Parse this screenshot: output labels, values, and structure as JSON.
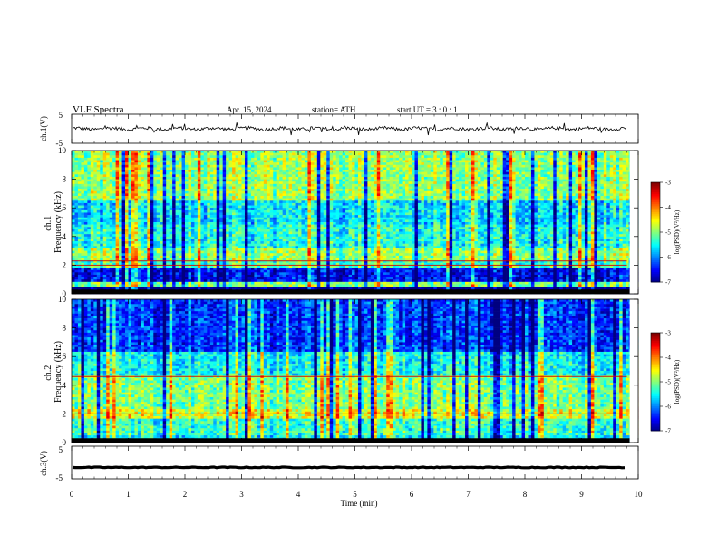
{
  "header": {
    "title": "VLF  Spectra",
    "date": "Apr. 15, 2024",
    "station": "station= ATH",
    "start_ut": "start  UT  =   3  : 0   : 1"
  },
  "chart_data": [
    {
      "type": "line",
      "panel": "ch1-waveform",
      "ylabel": "ch.1(V)",
      "yticks": [
        "5",
        "-5"
      ],
      "ylim": [
        -5,
        5
      ],
      "xlim": [
        0,
        10
      ],
      "series": [
        {
          "mean": 0,
          "noise_amplitude": 0.6,
          "spike_amplitude": 2.5,
          "end": 9.8
        }
      ]
    },
    {
      "type": "heatmap",
      "panel": "ch1-spectrogram",
      "ylabel": "ch.1\nFrequency  (kHz)",
      "yticks": [
        "0",
        "2",
        "4",
        "6",
        "8",
        "10"
      ],
      "ylim": [
        0,
        10
      ],
      "xlim": [
        0,
        10
      ],
      "colorbar": {
        "label": "log(PSD)(V²/Hz)",
        "ticks": [
          "-3",
          "-4",
          "-5",
          "-6",
          "-7"
        ],
        "range": [
          -7,
          -3
        ]
      },
      "bands": [
        {
          "f": [
            0.0,
            0.5
          ],
          "level": -7.0
        },
        {
          "f": [
            0.5,
            0.9
          ],
          "level": -5.0
        },
        {
          "f": [
            0.9,
            1.8
          ],
          "level": -6.5
        },
        {
          "f": [
            1.8,
            2.4
          ],
          "level": -5.2
        },
        {
          "f": [
            2.4,
            3.2
          ],
          "level": -4.9
        },
        {
          "f": [
            3.2,
            4.8
          ],
          "level": -5.4
        },
        {
          "f": [
            4.8,
            6.5
          ],
          "level": -5.6
        },
        {
          "f": [
            6.5,
            10.0
          ],
          "level": -4.9
        }
      ],
      "lines_khz": [
        2.3,
        2.0
      ]
    },
    {
      "type": "heatmap",
      "panel": "ch2-spectrogram",
      "ylabel": "ch.2\nFrequency  (kHz)",
      "yticks": [
        "0",
        "2",
        "4",
        "6",
        "8",
        "10"
      ],
      "ylim": [
        0,
        10
      ],
      "xlim": [
        0,
        10
      ],
      "colorbar": {
        "label": "log(PSD)(V²/Hz)",
        "ticks": [
          "-3",
          "-4",
          "-5",
          "-6",
          "-7"
        ],
        "range": [
          -7,
          -3
        ]
      },
      "bands": [
        {
          "f": [
            0.0,
            0.5
          ],
          "level": -5.6
        },
        {
          "f": [
            0.5,
            1.6
          ],
          "level": -5.3
        },
        {
          "f": [
            1.6,
            2.4
          ],
          "level": -4.6
        },
        {
          "f": [
            2.4,
            4.6
          ],
          "level": -5.0
        },
        {
          "f": [
            4.6,
            6.3
          ],
          "level": -5.5
        },
        {
          "f": [
            6.3,
            10.0
          ],
          "level": -6.3
        }
      ],
      "lines_khz": [
        2.0,
        4.6
      ]
    },
    {
      "type": "line",
      "panel": "ch3-waveform",
      "ylabel": "ch.3(V)",
      "yticks": [
        "5",
        "-5"
      ],
      "ylim": [
        -5,
        5
      ],
      "xlim": [
        0,
        10
      ],
      "series": [
        {
          "mean": -1.5,
          "noise_amplitude": 0.25,
          "end": 9.8
        }
      ]
    }
  ],
  "x_axis": {
    "label": "Time  (min)",
    "ticks": [
      "0",
      "1",
      "2",
      "3",
      "4",
      "5",
      "6",
      "7",
      "8",
      "9",
      "10"
    ]
  }
}
